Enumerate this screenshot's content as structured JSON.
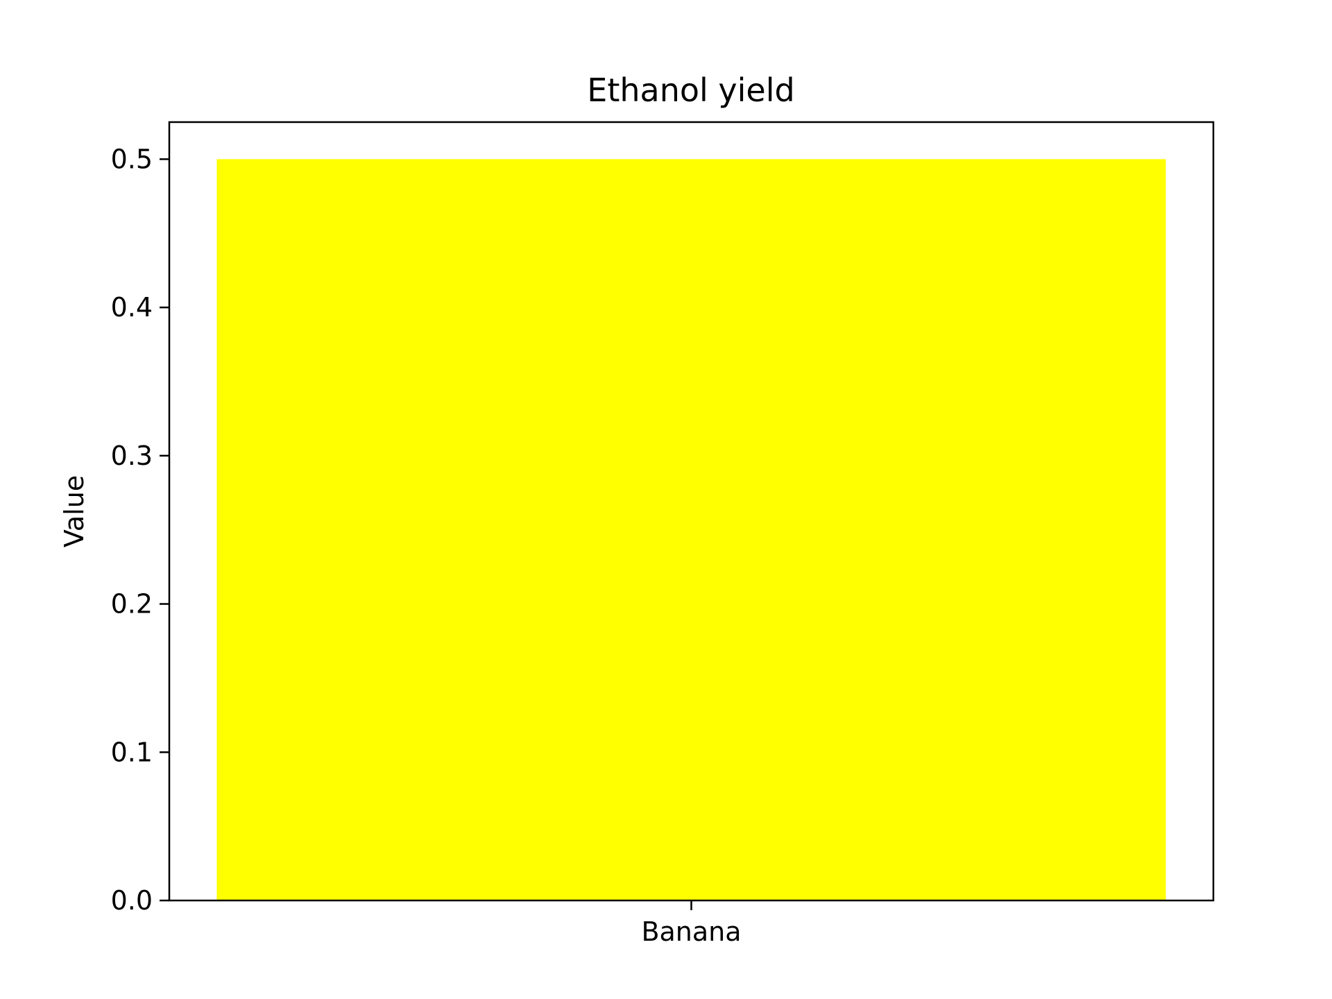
{
  "chart_data": {
    "type": "bar",
    "title": "Ethanol yield",
    "xlabel": "",
    "ylabel": "Value",
    "categories": [
      "Banana"
    ],
    "values": [
      0.5
    ],
    "ylim": [
      0,
      0.525
    ],
    "yticks": [
      "0.0",
      "0.1",
      "0.2",
      "0.3",
      "0.4",
      "0.5"
    ],
    "bar_color": "#ffff00",
    "grid": false,
    "legend": "none"
  }
}
